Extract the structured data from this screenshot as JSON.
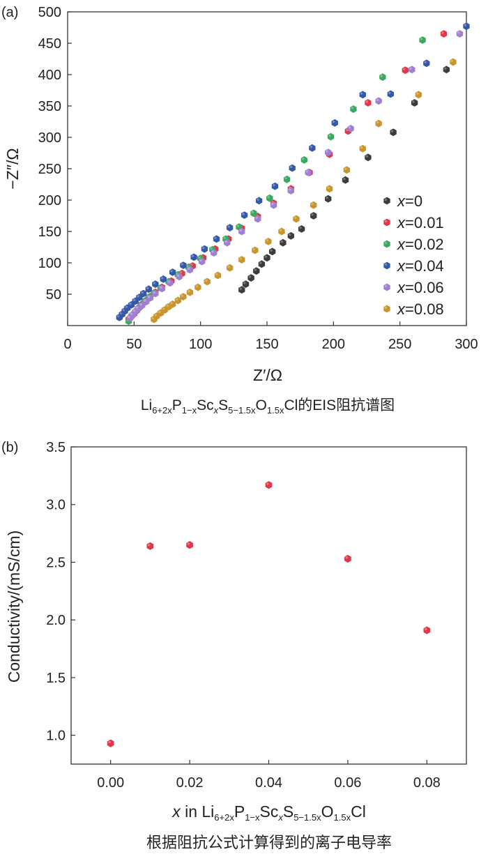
{
  "chart_data": [
    {
      "type": "scatter",
      "panel_label": "(a)",
      "xlabel": "Z′/Ω",
      "ylabel": "−Z″/Ω",
      "xlim": [
        0,
        300
      ],
      "ylim": [
        0,
        500
      ],
      "xticks": [
        0,
        50,
        100,
        150,
        200,
        250,
        300
      ],
      "yticks": [
        50,
        100,
        150,
        200,
        250,
        300,
        350,
        400,
        450,
        500
      ],
      "legend_position": "right",
      "caption": {
        "pre": "Li",
        "s1": "6+2x",
        "m1": "P",
        "s2": "1−x",
        "m2": "Sc",
        "s3": "x",
        "m3": "S",
        "s4": "5−1.5x",
        "m4": "O",
        "s5": "1.5x",
        "post": "Cl的EIS阻抗谱图"
      },
      "series": [
        {
          "name": "x=0",
          "var": "x",
          "rest": "=0",
          "color": "#3d3b3b",
          "points": [
            [
              131,
              57
            ],
            [
              134,
              66
            ],
            [
              138,
              76
            ],
            [
              142,
              87
            ],
            [
              146,
              98
            ],
            [
              150,
              108
            ],
            [
              154,
              118
            ],
            [
              162,
              132
            ],
            [
              168,
              143
            ],
            [
              176,
              154
            ],
            [
              185,
              175
            ],
            [
              196,
              202
            ],
            [
              209,
              232
            ],
            [
              226,
              268
            ],
            [
              245,
              308
            ],
            [
              261,
              355
            ],
            [
              285,
              408
            ]
          ]
        },
        {
          "name": "x=0.01",
          "var": "x",
          "rest": "=0.01",
          "color": "#e0384a",
          "points": [
            [
              46,
              10
            ],
            [
              48,
              15
            ],
            [
              50,
              19
            ],
            [
              52,
              24
            ],
            [
              54,
              29
            ],
            [
              56,
              34
            ],
            [
              59,
              40
            ],
            [
              62,
              46
            ],
            [
              66,
              53
            ],
            [
              71,
              61
            ],
            [
              78,
              71
            ],
            [
              86,
              83
            ],
            [
              94,
              95
            ],
            [
              102,
              108
            ],
            [
              111,
              122
            ],
            [
              121,
              138
            ],
            [
              131,
              155
            ],
            [
              143,
              174
            ],
            [
              155,
              195
            ],
            [
              168,
              218
            ],
            [
              182,
              244
            ],
            [
              197,
              273
            ],
            [
              211,
              310
            ],
            [
              226,
              355
            ],
            [
              254,
              407
            ],
            [
              283,
              465
            ]
          ]
        },
        {
          "name": "x=0.02",
          "var": "x",
          "rest": "=0.02",
          "color": "#3aa85f",
          "points": [
            [
              46,
              7
            ],
            [
              47,
              12
            ],
            [
              49,
              17
            ],
            [
              51,
              22
            ],
            [
              53,
              27
            ],
            [
              55,
              32
            ],
            [
              58,
              38
            ],
            [
              61,
              45
            ],
            [
              65,
              52
            ],
            [
              70,
              60
            ],
            [
              76,
              70
            ],
            [
              83,
              81
            ],
            [
              91,
              93
            ],
            [
              100,
              107
            ],
            [
              109,
              121
            ],
            [
              119,
              138
            ],
            [
              129,
              157
            ],
            [
              140,
              179
            ],
            [
              152,
              203
            ],
            [
              165,
              233
            ],
            [
              178,
              264
            ],
            [
              198,
              301
            ],
            [
              215,
              345
            ],
            [
              237,
              396
            ],
            [
              267,
              455
            ]
          ]
        },
        {
          "name": "x=0.04",
          "var": "x",
          "rest": "=0.04",
          "color": "#3558a8",
          "points": [
            [
              39,
              13
            ],
            [
              41,
              18
            ],
            [
              43,
              23
            ],
            [
              45,
              28
            ],
            [
              48,
              33
            ],
            [
              51,
              39
            ],
            [
              54,
              45
            ],
            [
              57,
              51
            ],
            [
              61,
              58
            ],
            [
              66,
              66
            ],
            [
              72,
              74
            ],
            [
              79,
              85
            ],
            [
              87,
              96
            ],
            [
              95,
              109
            ],
            [
              103,
              122
            ],
            [
              112,
              138
            ],
            [
              122,
              156
            ],
            [
              133,
              176
            ],
            [
              144,
              199
            ],
            [
              156,
              222
            ],
            [
              169,
              251
            ],
            [
              184,
              283
            ],
            [
              201,
              323
            ],
            [
              222,
              368
            ],
            [
              243,
              369
            ],
            [
              270,
              418
            ],
            [
              300,
              477
            ]
          ]
        },
        {
          "name": "x=0.06",
          "var": "x",
          "rest": "=0.06",
          "color": "#a07ed0",
          "points": [
            [
              47,
              12
            ],
            [
              49,
              17
            ],
            [
              51,
              22
            ],
            [
              53,
              27
            ],
            [
              56,
              32
            ],
            [
              59,
              38
            ],
            [
              62,
              44
            ],
            [
              66,
              51
            ],
            [
              71,
              59
            ],
            [
              77,
              68
            ],
            [
              84,
              78
            ],
            [
              92,
              89
            ],
            [
              101,
              102
            ],
            [
              110,
              116
            ],
            [
              120,
              132
            ],
            [
              131,
              150
            ],
            [
              143,
              170
            ],
            [
              155,
              192
            ],
            [
              168,
              215
            ],
            [
              181,
              244
            ],
            [
              196,
              276
            ],
            [
              213,
              314
            ],
            [
              234,
              358
            ],
            [
              259,
              408
            ],
            [
              295,
              465
            ]
          ]
        },
        {
          "name": "x=0.08",
          "var": "x",
          "rest": "=0.08",
          "color": "#c8962c",
          "points": [
            [
              65,
              10
            ],
            [
              67,
              15
            ],
            [
              70,
              20
            ],
            [
              73,
              25
            ],
            [
              76,
              30
            ],
            [
              79,
              34
            ],
            [
              83,
              40
            ],
            [
              87,
              46
            ],
            [
              92,
              53
            ],
            [
              98,
              61
            ],
            [
              105,
              70
            ],
            [
              113,
              80
            ],
            [
              122,
              92
            ],
            [
              131,
              105
            ],
            [
              141,
              120
            ],
            [
              151,
              134
            ],
            [
              161,
              150
            ],
            [
              172,
              170
            ],
            [
              185,
              192
            ],
            [
              197,
              218
            ],
            [
              210,
              248
            ],
            [
              222,
              282
            ],
            [
              234,
              322
            ],
            [
              264,
              368
            ],
            [
              290,
              420
            ]
          ]
        }
      ]
    },
    {
      "type": "scatter",
      "panel_label": "(b)",
      "ylabel": "Conductivity/(mS/cm)",
      "xlim": [
        -0.01,
        0.09
      ],
      "ylim": [
        0.75,
        3.5
      ],
      "xticks": [
        0.0,
        0.02,
        0.04,
        0.06,
        0.08
      ],
      "xtick_labels": [
        "0.00",
        "0.02",
        "0.04",
        "0.06",
        "0.08"
      ],
      "yticks": [
        1.0,
        1.5,
        2.0,
        2.5,
        3.0,
        3.5
      ],
      "ytick_labels": [
        "1.0",
        "1.5",
        "2.0",
        "2.5",
        "3.0",
        "3.5"
      ],
      "xlabel": {
        "var": "x",
        "pre": " in Li",
        "s1": "6+2x",
        "m1": "P",
        "s2": "1−x",
        "m2": "Sc",
        "s3": "x",
        "m3": "S",
        "s4": "5−1.5x",
        "m4": "O",
        "s5": "1.5x",
        "post": "Cl"
      },
      "caption": "根据阻抗公式计算得到的离子电导率",
      "color": "#e0384a",
      "x": [
        0.0,
        0.01,
        0.02,
        0.04,
        0.06,
        0.08
      ],
      "y": [
        0.93,
        2.64,
        2.65,
        3.17,
        2.53,
        1.91
      ]
    }
  ]
}
